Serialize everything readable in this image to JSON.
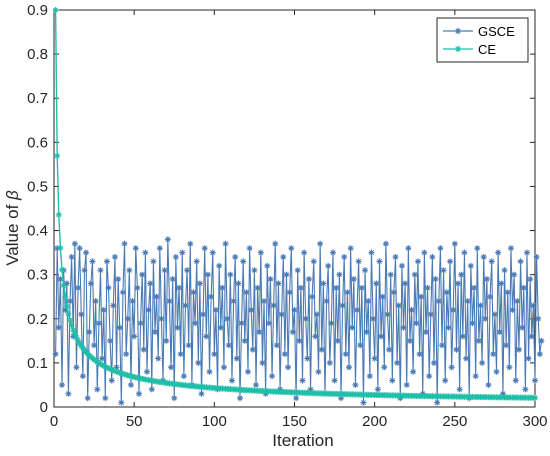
{
  "chart_data": {
    "type": "line",
    "title": "",
    "xlabel": "Iteration",
    "ylabel_prefix": "Value of ",
    "ylabel_symbol": "β",
    "xlim": [
      0,
      300
    ],
    "ylim": [
      0,
      0.9
    ],
    "xticks": [
      0,
      50,
      100,
      150,
      200,
      250,
      300
    ],
    "xtick_labels": [
      "0",
      "50",
      "100",
      "150",
      "200",
      "250",
      "300"
    ],
    "yticks": [
      0,
      0.1,
      0.2,
      0.3,
      0.4,
      0.5,
      0.6,
      0.7,
      0.8,
      0.9
    ],
    "ytick_labels": [
      "0",
      "0.1",
      "0.2",
      "0.3",
      "0.4",
      "0.5",
      "0.6",
      "0.7",
      "0.8",
      "0.9"
    ],
    "grid": false,
    "legend_position": "top-right",
    "marker": "asterisk",
    "series": [
      {
        "name": "GSCE",
        "color": "#4a7ab5",
        "x_start": 1,
        "x_step": 1,
        "values": [
          0.12,
          0.36,
          0.18,
          0.29,
          0.05,
          0.31,
          0.22,
          0.28,
          0.03,
          0.24,
          0.34,
          0.16,
          0.37,
          0.09,
          0.27,
          0.36,
          0.21,
          0.07,
          0.31,
          0.35,
          0.02,
          0.17,
          0.28,
          0.33,
          0.14,
          0.24,
          0.04,
          0.19,
          0.31,
          0.11,
          0.22,
          0.02,
          0.33,
          0.27,
          0.15,
          0.06,
          0.23,
          0.34,
          0.09,
          0.29,
          0.18,
          0.01,
          0.26,
          0.37,
          0.12,
          0.2,
          0.31,
          0.05,
          0.24,
          0.16,
          0.36,
          0.27,
          0.03,
          0.19,
          0.3,
          0.13,
          0.35,
          0.08,
          0.22,
          0.28,
          0.04,
          0.33,
          0.17,
          0.25,
          0.11,
          0.36,
          0.2,
          0.06,
          0.31,
          0.15,
          0.38,
          0.24,
          0.09,
          0.29,
          0.02,
          0.34,
          0.18,
          0.27,
          0.12,
          0.35,
          0.07,
          0.23,
          0.31,
          0.14,
          0.37,
          0.05,
          0.26,
          0.19,
          0.33,
          0.1,
          0.28,
          0.03,
          0.21,
          0.36,
          0.16,
          0.3,
          0.08,
          0.25,
          0.35,
          0.12,
          0.22,
          0.04,
          0.32,
          0.18,
          0.27,
          0.09,
          0.37,
          0.2,
          0.14,
          0.3,
          0.06,
          0.24,
          0.34,
          0.11,
          0.28,
          0.02,
          0.19,
          0.33,
          0.15,
          0.26,
          0.08,
          0.36,
          0.22,
          0.13,
          0.31,
          0.05,
          0.27,
          0.17,
          0.35,
          0.1,
          0.24,
          0.03,
          0.32,
          0.19,
          0.29,
          0.07,
          0.23,
          0.37,
          0.14,
          0.28,
          0.04,
          0.21,
          0.34,
          0.12,
          0.3,
          0.09,
          0.26,
          0.36,
          0.17,
          0.22,
          0.02,
          0.31,
          0.15,
          0.27,
          0.06,
          0.35,
          0.2,
          0.11,
          0.29,
          0.04,
          0.25,
          0.33,
          0.16,
          0.21,
          0.08,
          0.37,
          0.13,
          0.28,
          0.03,
          0.24,
          0.32,
          0.1,
          0.19,
          0.35,
          0.06,
          0.27,
          0.15,
          0.3,
          0.02,
          0.23,
          0.34,
          0.12,
          0.26,
          0.09,
          0.36,
          0.18,
          0.29,
          0.05,
          0.22,
          0.33,
          0.14,
          0.27,
          0.01,
          0.31,
          0.17,
          0.24,
          0.07,
          0.35,
          0.2,
          0.11,
          0.28,
          0.04,
          0.33,
          0.16,
          0.25,
          0.09,
          0.37,
          0.21,
          0.13,
          0.3,
          0.06,
          0.26,
          0.34,
          0.1,
          0.23,
          0.02,
          0.32,
          0.18,
          0.28,
          0.05,
          0.36,
          0.15,
          0.22,
          0.08,
          0.3,
          0.19,
          0.33,
          0.12,
          0.25,
          0.03,
          0.35,
          0.17,
          0.27,
          0.07,
          0.21,
          0.34,
          0.1,
          0.29,
          0.01,
          0.24,
          0.36,
          0.14,
          0.31,
          0.06,
          0.26,
          0.18,
          0.33,
          0.09,
          0.22,
          0.37,
          0.13,
          0.28,
          0.04,
          0.3,
          0.16,
          0.35,
          0.11,
          0.24,
          0.02,
          0.32,
          0.19,
          0.27,
          0.07,
          0.36,
          0.15,
          0.23,
          0.1,
          0.34,
          0.2,
          0.29,
          0.05,
          0.25,
          0.33,
          0.12,
          0.21,
          0.08,
          0.35,
          0.17,
          0.28,
          0.03,
          0.31,
          0.14,
          0.26,
          0.09,
          0.36,
          0.22,
          0.3,
          0.06,
          0.24,
          0.13,
          0.33,
          0.18,
          0.27,
          0.04,
          0.35,
          0.11,
          0.29,
          0.16,
          0.23,
          0.06,
          0.34,
          0.2,
          0.12,
          0.15
        ]
      },
      {
        "name": "CE",
        "color": "#1fbfa8",
        "x_start": 1,
        "x_step": 1,
        "formula_note": "",
        "values": []
      }
    ]
  }
}
